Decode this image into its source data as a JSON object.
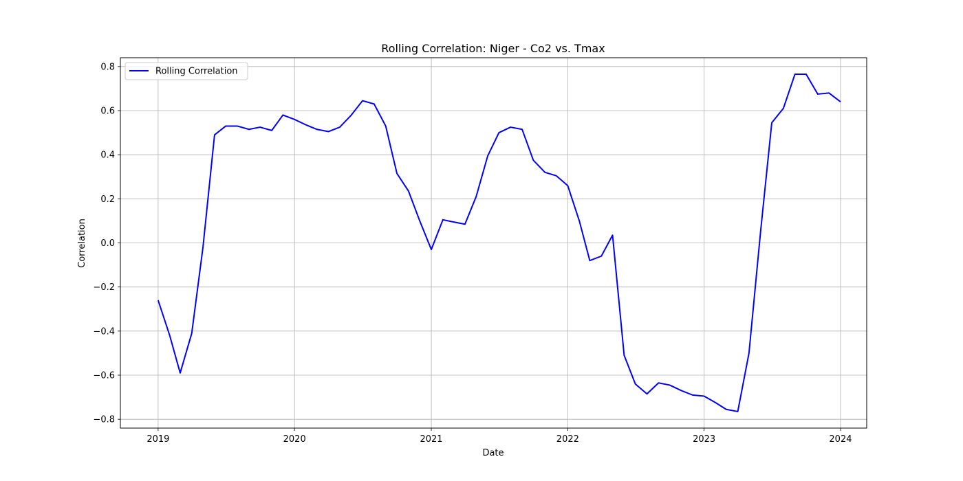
{
  "chart_data": {
    "type": "line",
    "title": "Rolling Correlation: Niger - Co2 vs. Tmax",
    "xlabel": "Date",
    "ylabel": "Correlation",
    "grid": true,
    "legend_placement": "upper-left",
    "xlim": [
      "2018-09-22",
      "2024-03-11"
    ],
    "ylim": [
      -0.84,
      0.84
    ],
    "x_ticks": [
      "2019",
      "2020",
      "2021",
      "2022",
      "2023",
      "2024"
    ],
    "y_ticks": [
      "−0.8",
      "−0.6",
      "−0.4",
      "−0.2",
      "0.0",
      "0.2",
      "0.4",
      "0.6",
      "0.8"
    ],
    "x": [
      "2019-01",
      "2019-02",
      "2019-03",
      "2019-04",
      "2019-05",
      "2019-06",
      "2019-07",
      "2019-08",
      "2019-09",
      "2019-10",
      "2019-11",
      "2019-12",
      "2020-01",
      "2020-02",
      "2020-03",
      "2020-04",
      "2020-05",
      "2020-06",
      "2020-07",
      "2020-08",
      "2020-09",
      "2020-10",
      "2020-11",
      "2020-12",
      "2021-01",
      "2021-02",
      "2021-03",
      "2021-04",
      "2021-05",
      "2021-06",
      "2021-07",
      "2021-08",
      "2021-09",
      "2021-10",
      "2021-11",
      "2021-12",
      "2022-01",
      "2022-02",
      "2022-03",
      "2022-04",
      "2022-05",
      "2022-06",
      "2022-07",
      "2022-08",
      "2022-09",
      "2022-10",
      "2022-11",
      "2022-12",
      "2023-01",
      "2023-02",
      "2023-03",
      "2023-04",
      "2023-05",
      "2023-06",
      "2023-07",
      "2023-08",
      "2023-09",
      "2023-10",
      "2023-11",
      "2023-12",
      "2024-01"
    ],
    "series": [
      {
        "name": "Rolling Correlation",
        "color": "#0000ff",
        "values": [
          -0.26,
          -0.42,
          -0.59,
          -0.41,
          -0.02,
          0.49,
          0.53,
          0.53,
          0.515,
          0.525,
          0.51,
          0.58,
          0.56,
          0.535,
          0.515,
          0.505,
          0.525,
          0.58,
          0.645,
          0.63,
          0.53,
          0.315,
          0.235,
          0.1,
          -0.03,
          0.105,
          0.095,
          0.085,
          0.21,
          0.395,
          0.5,
          0.525,
          0.515,
          0.375,
          0.32,
          0.305,
          0.26,
          0.1,
          -0.08,
          -0.06,
          0.035,
          -0.51,
          -0.64,
          -0.685,
          -0.635,
          -0.645,
          -0.67,
          -0.69,
          -0.695,
          -0.725,
          -0.755,
          -0.765,
          -0.5,
          0.05,
          0.545,
          0.61,
          0.765,
          0.765,
          0.675,
          0.68,
          0.64
        ]
      }
    ]
  }
}
